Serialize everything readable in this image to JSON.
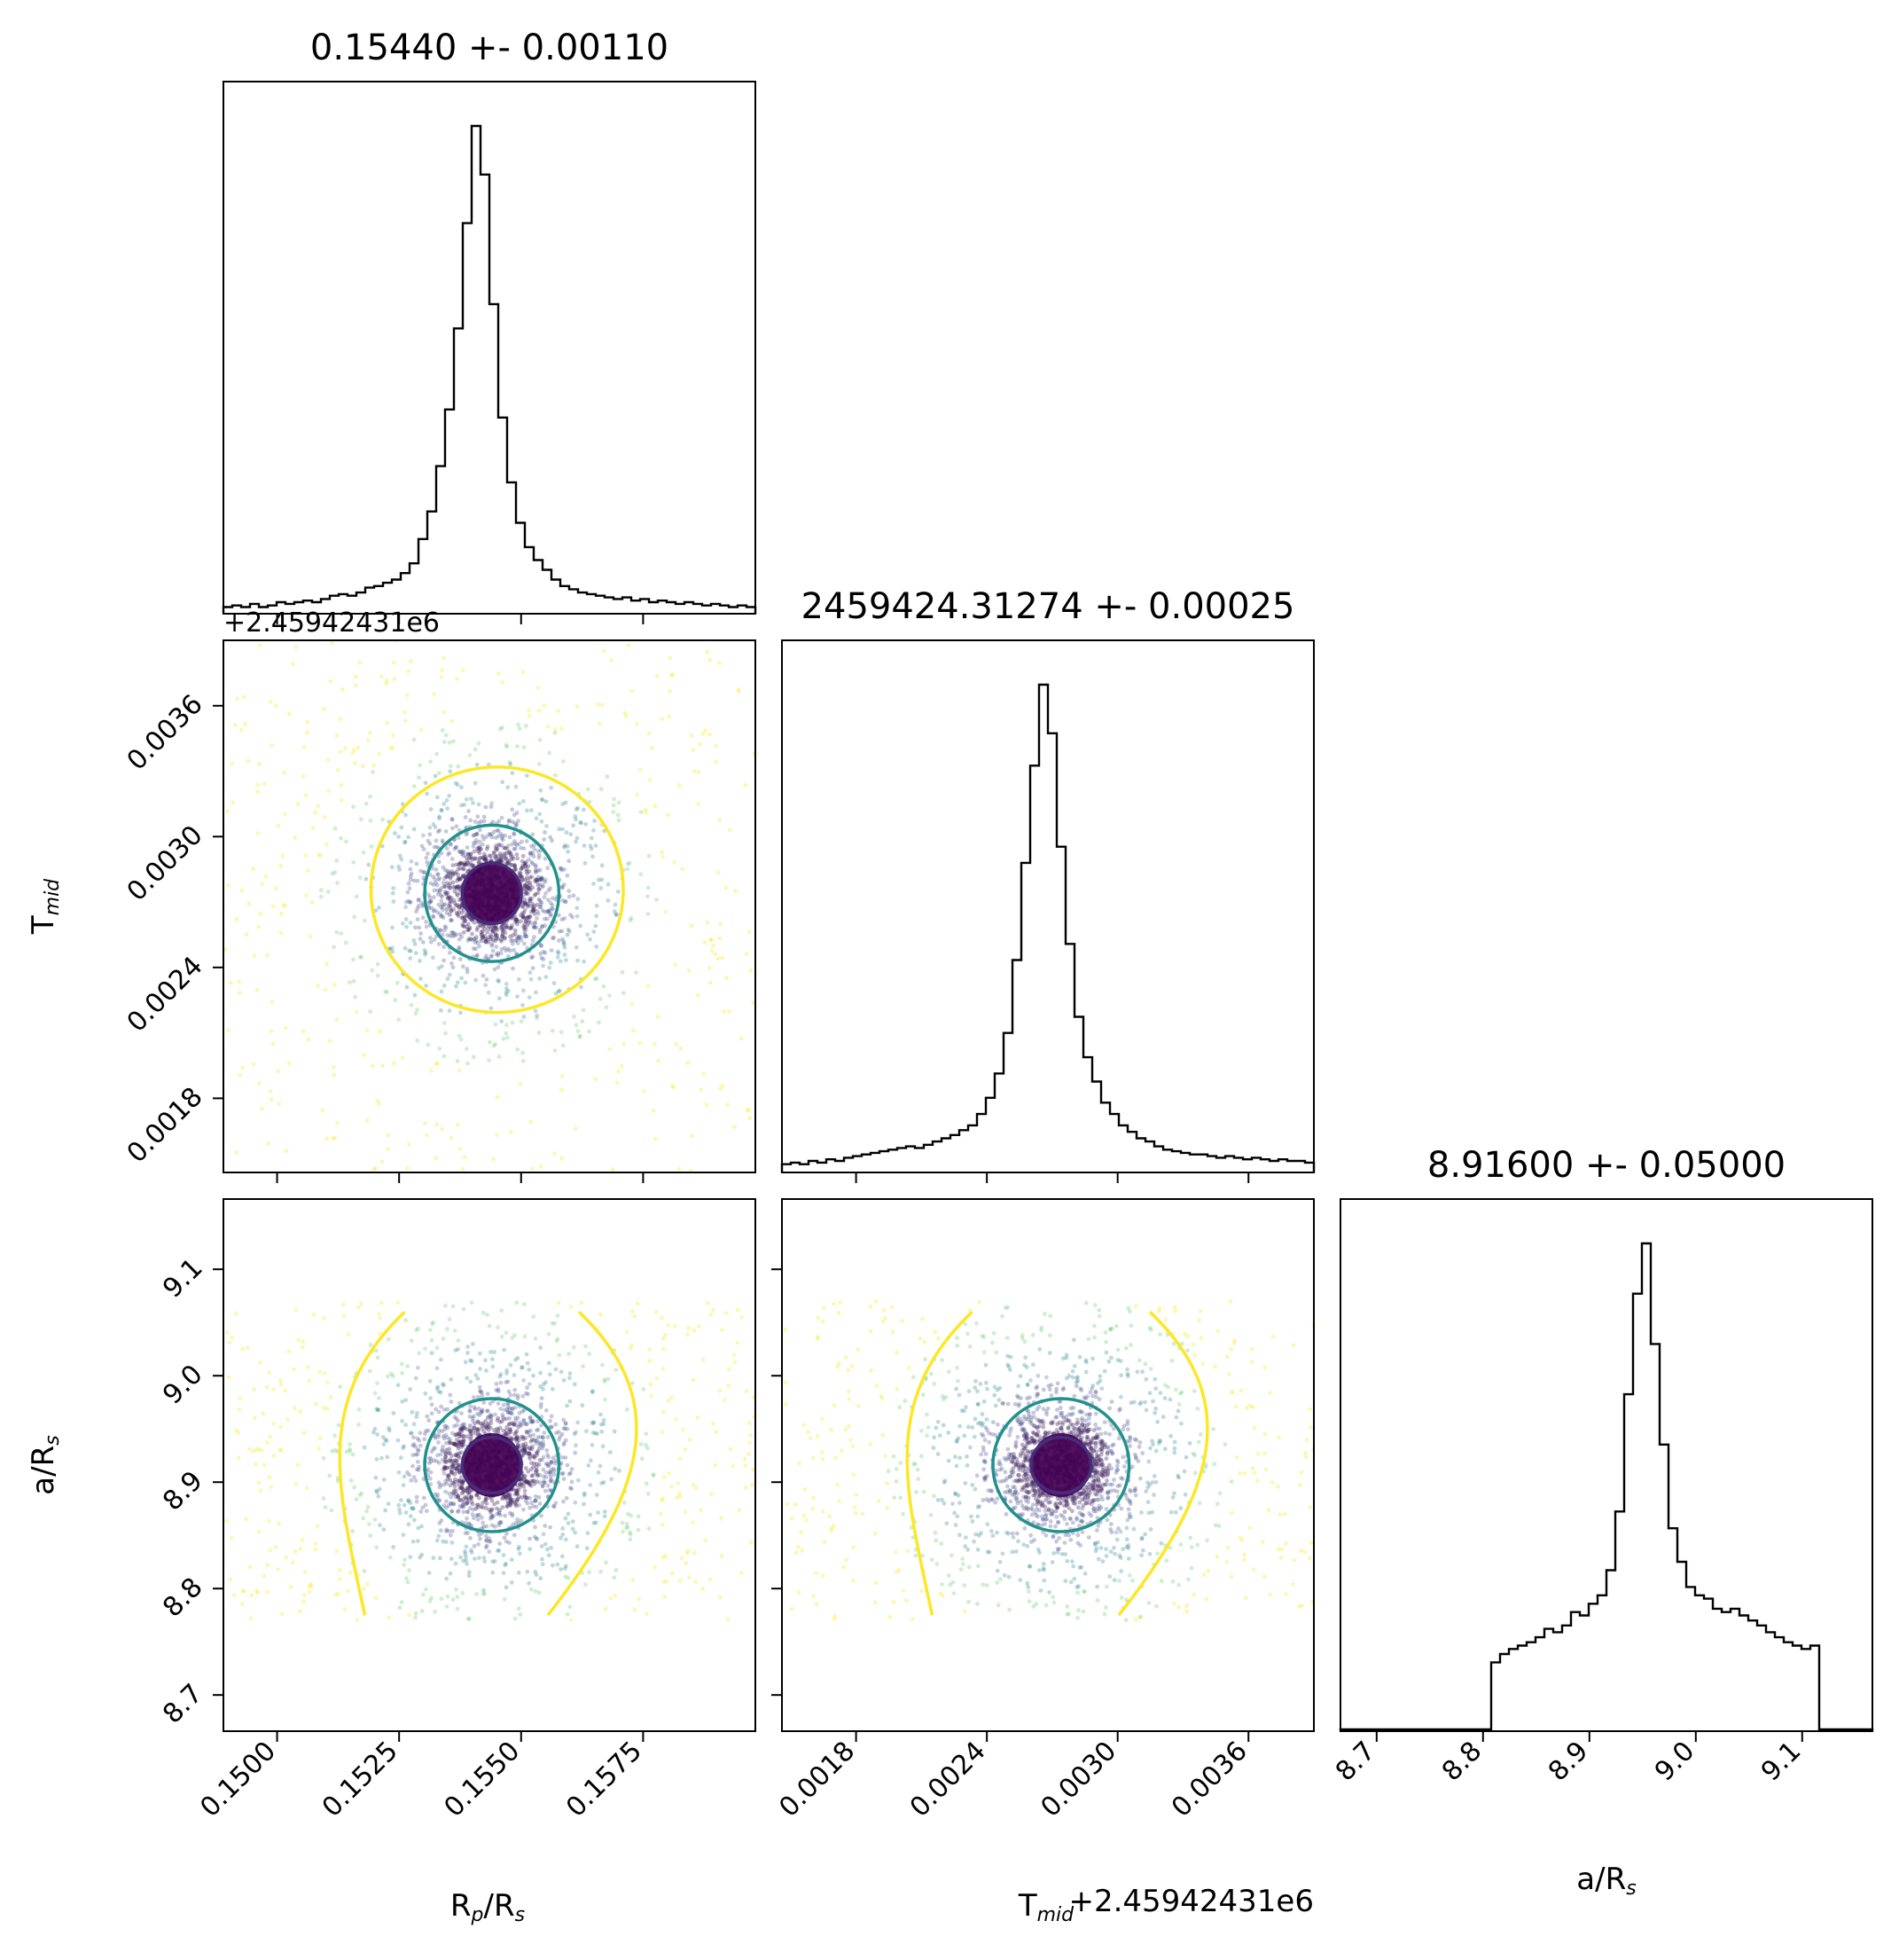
{
  "chart_data": {
    "type": "scatter",
    "subtype": "corner-plot",
    "parameters": [
      {
        "key": "rp",
        "label": "R_p/R_s",
        "median": 0.1544,
        "sigma": 0.0011
      },
      {
        "key": "tmid",
        "label": "T_mid",
        "median": 0.00274,
        "sigma": 0.00025,
        "offset_label": "+2.45942431e6"
      },
      {
        "key": "ars",
        "label": "a/R_s",
        "median": 8.916,
        "sigma": 0.05
      }
    ],
    "titles": {
      "rp": "0.15440 +- 0.00110",
      "tmid": "2459424.31274 +- 0.00025",
      "ars": "8.91600 +- 0.05000"
    },
    "axis_labels": {
      "rp_x": "R",
      "rp_x_sub": "p",
      "rp_x_tail": "/R",
      "rp_x_tail_sub": "s",
      "tmid_y": "T",
      "tmid_y_sub": "mid",
      "tmid_x": "T",
      "tmid_x_sub": "mid",
      "ars_y": "a/R",
      "ars_y_sub": "s",
      "ars_x": "a/R",
      "ars_x_sub": "s"
    },
    "offset_labels": {
      "tmid_y": "+2.45942431e6",
      "tmid_x": "+2.45942431e6"
    },
    "ranges": {
      "rp": [
        0.1489,
        0.1598
      ],
      "tmid": [
        0.00146,
        0.0039
      ],
      "ars": [
        8.666,
        9.166
      ]
    },
    "ticks": {
      "rp": [
        "0.1500",
        "0.1525",
        "0.1550",
        "0.1575"
      ],
      "tmid": [
        "0.0018",
        "0.0024",
        "0.0030",
        "0.0036"
      ],
      "ars": [
        "8.7",
        "8.8",
        "8.9",
        "9.0",
        "9.1"
      ]
    },
    "tick_values": {
      "rp": [
        0.15,
        0.1525,
        0.155,
        0.1575
      ],
      "tmid": [
        0.0018,
        0.0024,
        0.003,
        0.0036
      ],
      "ars": [
        8.7,
        8.8,
        8.9,
        9.0,
        9.1
      ]
    },
    "histograms": {
      "rp": {
        "bin_edges": [
          0.1489,
          0.1598
        ],
        "counts": [
          3,
          4,
          3,
          5,
          3,
          4,
          6,
          5,
          6,
          7,
          6,
          8,
          10,
          11,
          10,
          12,
          15,
          16,
          18,
          20,
          24,
          30,
          45,
          62,
          90,
          125,
          175,
          240,
          300,
          270,
          190,
          120,
          80,
          55,
          40,
          32,
          26,
          20,
          16,
          14,
          12,
          11,
          10,
          9,
          8,
          9,
          7,
          8,
          6,
          7,
          6,
          5,
          6,
          5,
          4,
          5,
          4,
          3,
          4,
          3
        ]
      },
      "tmid": {
        "bin_edges": [
          0.00146,
          0.0039
        ],
        "counts": [
          4,
          5,
          4,
          6,
          5,
          7,
          6,
          8,
          9,
          10,
          11,
          12,
          13,
          14,
          15,
          14,
          16,
          18,
          20,
          22,
          25,
          28,
          35,
          45,
          60,
          85,
          130,
          190,
          250,
          300,
          270,
          200,
          140,
          95,
          70,
          55,
          42,
          35,
          28,
          24,
          20,
          18,
          15,
          13,
          12,
          11,
          10,
          10,
          9,
          8,
          9,
          8,
          7,
          8,
          7,
          6,
          7,
          6,
          6,
          5
        ]
      },
      "ars": {
        "bin_edges": [
          8.666,
          9.166
        ],
        "counts": [
          0,
          0,
          0,
          0,
          0,
          0,
          0,
          0,
          0,
          0,
          0,
          0,
          0,
          0,
          0,
          0,
          0,
          40,
          45,
          48,
          50,
          52,
          55,
          60,
          58,
          62,
          70,
          68,
          75,
          80,
          95,
          130,
          200,
          260,
          290,
          230,
          170,
          120,
          100,
          85,
          80,
          78,
          72,
          70,
          72,
          68,
          65,
          62,
          58,
          55,
          52,
          50,
          48,
          50,
          0,
          0,
          0,
          0,
          0,
          0
        ]
      }
    },
    "samples": {
      "description": "draws drawn from a bivariate normal around the medians",
      "n": 2200
    },
    "contour_levels": [
      "inner",
      "middle",
      "outer"
    ],
    "colors": {
      "contour_inner": "#472d7b",
      "contour_middle": "#21918c",
      "contour_outer": "#fde725",
      "histogram": "#000000",
      "background": "#ffffff",
      "frame": "#000000"
    },
    "grid": false,
    "legend": "none"
  }
}
